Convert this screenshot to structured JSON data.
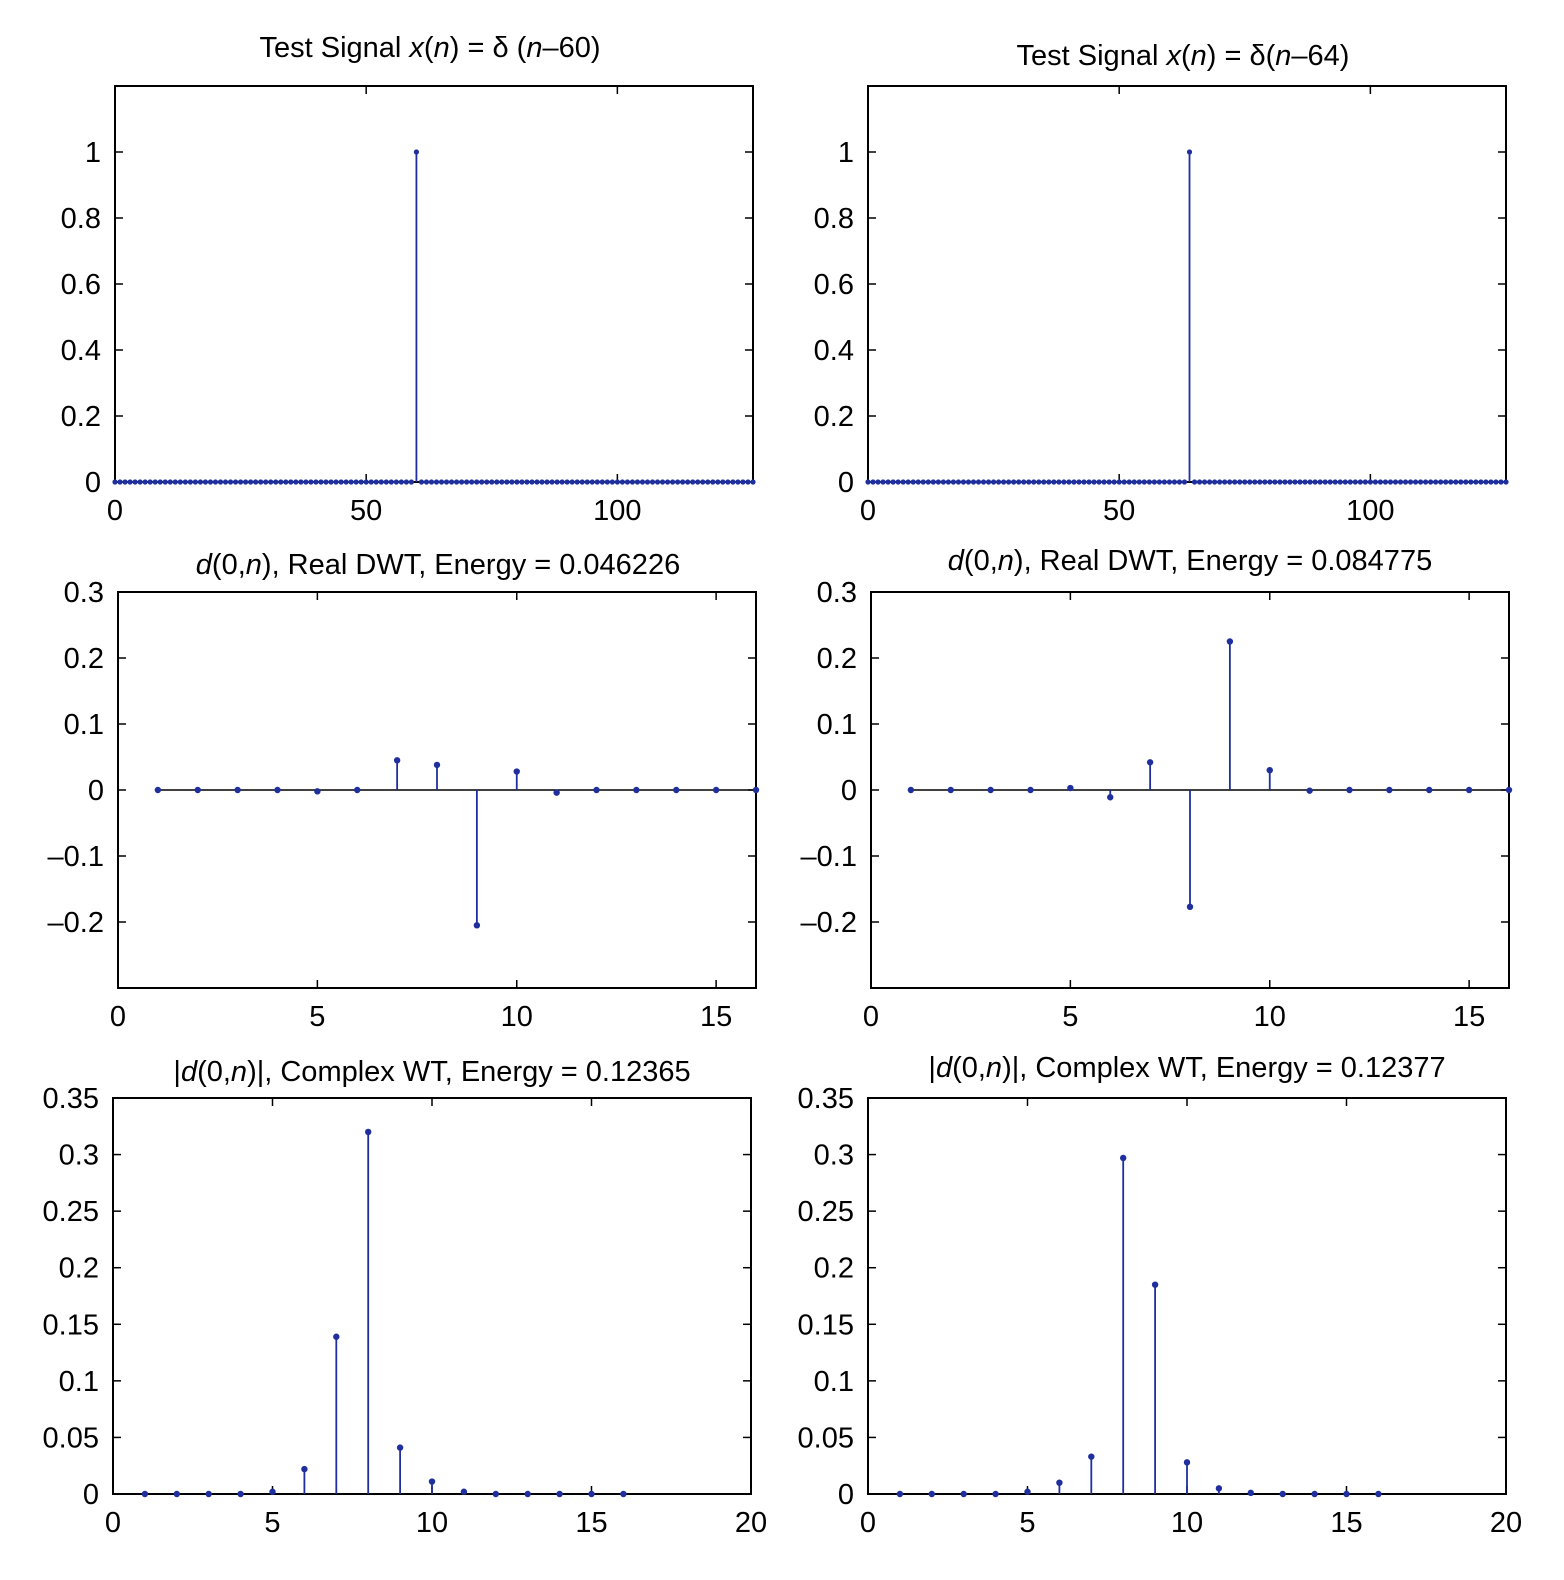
{
  "colors": {
    "stem": "#1f2f9e",
    "axes": "#000000",
    "background": "#ffffff"
  },
  "chart_data": [
    {
      "type": "stem",
      "title": {
        "parts": [
          {
            "text": "Test Signal ",
            "italic": false
          },
          {
            "text": "x",
            "italic": true
          },
          {
            "text": "(",
            "italic": false
          },
          {
            "text": "n",
            "italic": true
          },
          {
            "text": ") = δ (",
            "italic": false
          },
          {
            "text": "n",
            "italic": true
          },
          {
            "text": "–60)",
            "italic": false
          }
        ]
      },
      "xlim": [
        0,
        127
      ],
      "ylim": [
        0,
        1.2
      ],
      "xticks": [
        0,
        50,
        100
      ],
      "xtick_labels": [
        "0",
        "50",
        "100"
      ],
      "yticks": [
        0,
        0.2,
        0.4,
        0.6,
        0.8,
        1
      ],
      "ytick_labels": [
        "0",
        "0.2",
        "0.4",
        "0.6",
        "0.8",
        "1"
      ],
      "x_start": 0,
      "values": [
        0,
        0,
        0,
        0,
        0,
        0,
        0,
        0,
        0,
        0,
        0,
        0,
        0,
        0,
        0,
        0,
        0,
        0,
        0,
        0,
        0,
        0,
        0,
        0,
        0,
        0,
        0,
        0,
        0,
        0,
        0,
        0,
        0,
        0,
        0,
        0,
        0,
        0,
        0,
        0,
        0,
        0,
        0,
        0,
        0,
        0,
        0,
        0,
        0,
        0,
        0,
        0,
        0,
        0,
        0,
        0,
        0,
        0,
        0,
        0,
        1,
        0,
        0,
        0,
        0,
        0,
        0,
        0,
        0,
        0,
        0,
        0,
        0,
        0,
        0,
        0,
        0,
        0,
        0,
        0,
        0,
        0,
        0,
        0,
        0,
        0,
        0,
        0,
        0,
        0,
        0,
        0,
        0,
        0,
        0,
        0,
        0,
        0,
        0,
        0,
        0,
        0,
        0,
        0,
        0,
        0,
        0,
        0,
        0,
        0,
        0,
        0,
        0,
        0,
        0,
        0,
        0,
        0,
        0,
        0,
        0,
        0,
        0,
        0,
        0,
        0,
        0,
        0
      ]
    },
    {
      "type": "stem",
      "title": {
        "parts": [
          {
            "text": "Test Signal ",
            "italic": false
          },
          {
            "text": "x",
            "italic": true
          },
          {
            "text": "(",
            "italic": false
          },
          {
            "text": "n",
            "italic": true
          },
          {
            "text": ") = δ(",
            "italic": false
          },
          {
            "text": "n",
            "italic": true
          },
          {
            "text": "–64)",
            "italic": false
          }
        ]
      },
      "xlim": [
        0,
        127
      ],
      "ylim": [
        0,
        1.2
      ],
      "xticks": [
        0,
        50,
        100
      ],
      "xtick_labels": [
        "0",
        "50",
        "100"
      ],
      "yticks": [
        0,
        0.2,
        0.4,
        0.6,
        0.8,
        1
      ],
      "ytick_labels": [
        "0",
        "0.2",
        "0.4",
        "0.6",
        "0.8",
        "1"
      ],
      "x_start": 0,
      "values": [
        0,
        0,
        0,
        0,
        0,
        0,
        0,
        0,
        0,
        0,
        0,
        0,
        0,
        0,
        0,
        0,
        0,
        0,
        0,
        0,
        0,
        0,
        0,
        0,
        0,
        0,
        0,
        0,
        0,
        0,
        0,
        0,
        0,
        0,
        0,
        0,
        0,
        0,
        0,
        0,
        0,
        0,
        0,
        0,
        0,
        0,
        0,
        0,
        0,
        0,
        0,
        0,
        0,
        0,
        0,
        0,
        0,
        0,
        0,
        0,
        0,
        0,
        0,
        0,
        1,
        0,
        0,
        0,
        0,
        0,
        0,
        0,
        0,
        0,
        0,
        0,
        0,
        0,
        0,
        0,
        0,
        0,
        0,
        0,
        0,
        0,
        0,
        0,
        0,
        0,
        0,
        0,
        0,
        0,
        0,
        0,
        0,
        0,
        0,
        0,
        0,
        0,
        0,
        0,
        0,
        0,
        0,
        0,
        0,
        0,
        0,
        0,
        0,
        0,
        0,
        0,
        0,
        0,
        0,
        0,
        0,
        0,
        0,
        0,
        0,
        0,
        0,
        0
      ]
    },
    {
      "type": "stem",
      "title": {
        "parts": [
          {
            "text": "d",
            "italic": true
          },
          {
            "text": "(0,",
            "italic": false
          },
          {
            "text": "n",
            "italic": true
          },
          {
            "text": "), Real DWT, Energy = 0.046226",
            "italic": false
          }
        ]
      },
      "xlim": [
        0,
        16
      ],
      "ylim": [
        -0.3,
        0.3
      ],
      "xticks": [
        0,
        5,
        10,
        15
      ],
      "xtick_labels": [
        "0",
        "5",
        "10",
        "15"
      ],
      "yticks": [
        -0.2,
        -0.1,
        0,
        0.1,
        0.2,
        0.3
      ],
      "ytick_labels": [
        "–0.2",
        "–0.1",
        "0",
        "0.1",
        "0.2",
        "0.3"
      ],
      "x_start": 1,
      "values": [
        0,
        0,
        0,
        0,
        -0.002,
        0,
        0.045,
        0.038,
        -0.205,
        0.028,
        -0.004,
        0,
        0,
        0,
        0,
        0
      ]
    },
    {
      "type": "stem",
      "title": {
        "parts": [
          {
            "text": "d",
            "italic": true
          },
          {
            "text": "(0,",
            "italic": false
          },
          {
            "text": "n",
            "italic": true
          },
          {
            "text": "), Real DWT, Energy = 0.084775",
            "italic": false
          }
        ]
      },
      "xlim": [
        0,
        16
      ],
      "ylim": [
        -0.3,
        0.3
      ],
      "xticks": [
        0,
        5,
        10,
        15
      ],
      "xtick_labels": [
        "0",
        "5",
        "10",
        "15"
      ],
      "yticks": [
        -0.2,
        -0.1,
        0,
        0.1,
        0.2,
        0.3
      ],
      "ytick_labels": [
        "–0.2",
        "–0.1",
        "0",
        "0.1",
        "0.2",
        "0.3"
      ],
      "x_start": 1,
      "values": [
        0,
        0,
        0,
        0,
        0.003,
        -0.011,
        0.042,
        -0.177,
        0.225,
        0.03,
        -0.001,
        0,
        0,
        0,
        0,
        0
      ]
    },
    {
      "type": "stem",
      "title": {
        "parts": [
          {
            "text": "|",
            "italic": false
          },
          {
            "text": "d",
            "italic": true
          },
          {
            "text": "(0,",
            "italic": false
          },
          {
            "text": "n",
            "italic": true
          },
          {
            "text": ")|, Complex WT, Energy = 0.12365",
            "italic": false
          }
        ]
      },
      "xlim": [
        0,
        20
      ],
      "ylim": [
        0,
        0.35
      ],
      "xticks": [
        0,
        5,
        10,
        15,
        20
      ],
      "xtick_labels": [
        "0",
        "5",
        "10",
        "15",
        "20"
      ],
      "yticks": [
        0,
        0.05,
        0.1,
        0.15,
        0.2,
        0.25,
        0.3,
        0.35
      ],
      "ytick_labels": [
        "0",
        "0.05",
        "0.1",
        "0.15",
        "0.2",
        "0.25",
        "0.3",
        "0.35"
      ],
      "x_start": 1,
      "values": [
        0,
        0,
        0,
        0,
        0.002,
        0.022,
        0.139,
        0.32,
        0.041,
        0.011,
        0.002,
        0,
        0,
        0,
        0,
        0
      ]
    },
    {
      "type": "stem",
      "title": {
        "parts": [
          {
            "text": "|",
            "italic": false
          },
          {
            "text": "d",
            "italic": true
          },
          {
            "text": "(0,",
            "italic": false
          },
          {
            "text": "n",
            "italic": true
          },
          {
            "text": ")|, Complex WT, Energy = 0.12377",
            "italic": false
          }
        ]
      },
      "xlim": [
        0,
        20
      ],
      "ylim": [
        0,
        0.35
      ],
      "xticks": [
        0,
        5,
        10,
        15,
        20
      ],
      "xtick_labels": [
        "0",
        "5",
        "10",
        "15",
        "20"
      ],
      "yticks": [
        0,
        0.05,
        0.1,
        0.15,
        0.2,
        0.25,
        0.3,
        0.35
      ],
      "ytick_labels": [
        "0",
        "0.05",
        "0.1",
        "0.15",
        "0.2",
        "0.25",
        "0.3",
        "0.35"
      ],
      "x_start": 1,
      "values": [
        0,
        0,
        0,
        0,
        0.002,
        0.01,
        0.033,
        0.297,
        0.185,
        0.028,
        0.005,
        0.001,
        0,
        0,
        0,
        0
      ]
    }
  ]
}
